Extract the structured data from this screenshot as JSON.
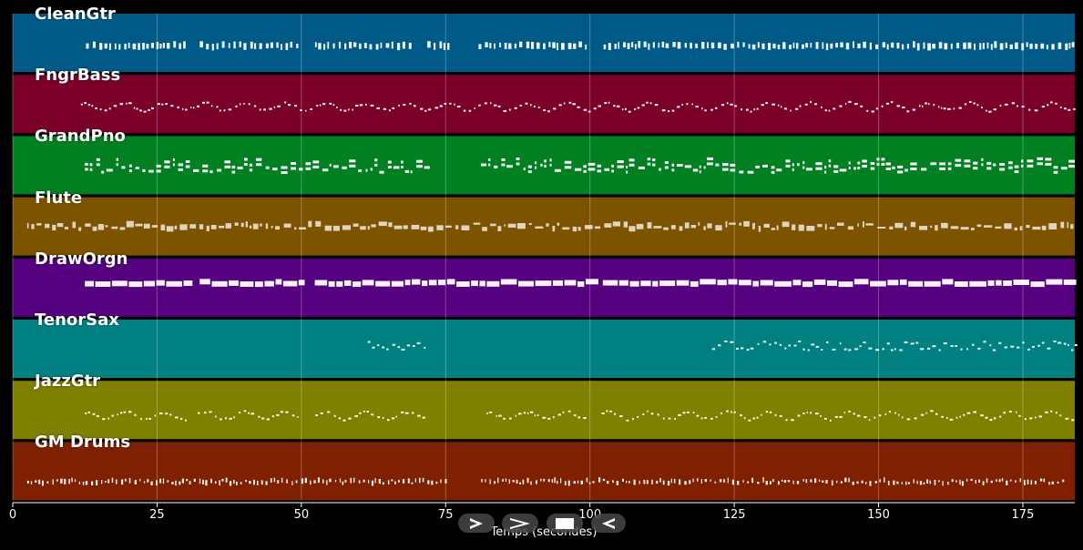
{
  "chart_data": {
    "type": "piano-roll",
    "title": "",
    "xlabel": "Temps (secondes)",
    "ylabel": "",
    "xlim": [
      0,
      184
    ],
    "xticks": [
      "0",
      "25",
      "50",
      "75",
      "100",
      "125",
      "150",
      "175"
    ],
    "xtick_values": [
      0,
      25,
      50,
      75,
      100,
      125,
      150,
      175
    ],
    "grid": true,
    "tracks": [
      {
        "name": "CleanGtr",
        "color": "#005a87",
        "note_color": "#ffffff",
        "start": 12.7,
        "end": 184,
        "gaps": [
          [
            30,
            32
          ],
          [
            49.8,
            52
          ],
          [
            69,
            71.5
          ],
          [
            76,
            80.5
          ],
          [
            99.8,
            102
          ]
        ],
        "style": "chords",
        "level": 0.55
      },
      {
        "name": "FngrBass",
        "color": "#7a0028",
        "note_color": "#ffffff",
        "start": 11.8,
        "end": 184,
        "gaps": [],
        "style": "melody",
        "level": 0.55
      },
      {
        "name": "GrandPno",
        "color": "#008020",
        "note_color": "#ffffff",
        "start": 12.5,
        "end": 184,
        "gaps": [
          [
            72,
            81
          ]
        ],
        "style": "dense",
        "level": 0.55
      },
      {
        "name": "Flute",
        "color": "#7d5300",
        "note_color": "#ffffff",
        "start": 2.5,
        "end": 184,
        "gaps": [],
        "style": "flute",
        "level": 0.5
      },
      {
        "name": "DrawOrgn",
        "color": "#55007f",
        "note_color": "#ffffff",
        "start": 12.5,
        "end": 184,
        "gaps": [
          [
            30,
            32
          ],
          [
            49.8,
            52
          ],
          [
            99.8,
            102
          ]
        ],
        "style": "blocks",
        "level": 0.42
      },
      {
        "name": "TenorSax",
        "color": "#008080",
        "note_color": "#ffffff",
        "start": 61.5,
        "end": 184,
        "gaps": [
          [
            71.5,
            121
          ]
        ],
        "style": "sax",
        "level": 0.45
      },
      {
        "name": "JazzGtr",
        "color": "#7f7f00",
        "note_color": "#ffffff",
        "start": 12.5,
        "end": 184,
        "gaps": [
          [
            30,
            32
          ],
          [
            49.8,
            52
          ],
          [
            72,
            82
          ],
          [
            99.8,
            102
          ]
        ],
        "style": "melody",
        "level": 0.6
      },
      {
        "name": "GM Drums",
        "color": "#7f2000",
        "note_color": "#ffffff",
        "start": 2.5,
        "end": 182,
        "gaps": [
          [
            75,
            81
          ]
        ],
        "style": "drums",
        "level": 0.68
      }
    ]
  },
  "controls": [
    {
      "name": "play-button",
      "icon": "play-icon"
    },
    {
      "name": "fast-forward-button",
      "icon": "fast-forward-icon"
    },
    {
      "name": "stop-button",
      "icon": "stop-icon"
    },
    {
      "name": "rewind-button",
      "icon": "rewind-icon"
    }
  ]
}
